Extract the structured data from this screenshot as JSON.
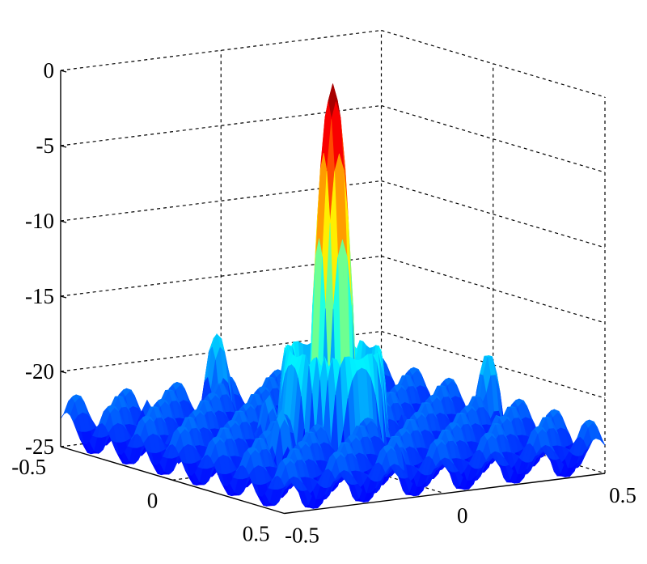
{
  "chart_data": {
    "type": "surface",
    "colormap": "jet",
    "grid": true,
    "zlim": [
      -25,
      0
    ],
    "xlim": [
      -0.5,
      0.5
    ],
    "ylim": [
      -0.5,
      0.5
    ],
    "z_ticks": [
      {
        "value": 0,
        "label": "0"
      },
      {
        "value": -5,
        "label": "-5"
      },
      {
        "value": -10,
        "label": "-10"
      },
      {
        "value": -15,
        "label": "-15"
      },
      {
        "value": -20,
        "label": "-20"
      },
      {
        "value": -25,
        "label": "-25"
      }
    ],
    "left_axis_ticks": [
      {
        "value": -0.5,
        "label": "-0.5"
      },
      {
        "value": 0,
        "label": "0"
      },
      {
        "value": 0.5,
        "label": "0.5"
      }
    ],
    "right_axis_ticks": [
      {
        "value": -0.5,
        "label": "-0.5"
      },
      {
        "value": 0,
        "label": "0"
      },
      {
        "value": 0.5,
        "label": "0.5"
      }
    ],
    "main_lobe": {
      "center": [
        0,
        0
      ],
      "peak": 0,
      "width": 0.085
    },
    "sidelobe_floor": -25,
    "sidelobes": [
      {
        "u": -0.46,
        "v": -0.04,
        "level": -18.5
      },
      {
        "u": -0.4,
        "v": -0.3,
        "level": -22.0
      },
      {
        "u": 0.05,
        "v": 0.45,
        "level": -18.8
      },
      {
        "u": 0.3,
        "v": 0.3,
        "level": -21.5
      },
      {
        "u": 0.2,
        "v": -0.3,
        "level": -20.0
      },
      {
        "u": -0.22,
        "v": 0.15,
        "level": -21.0
      },
      {
        "u": -0.06,
        "v": -0.16,
        "level": -20.5
      },
      {
        "u": 0.16,
        "v": 0.0,
        "level": -21.8
      },
      {
        "u": -0.3,
        "v": 0.42,
        "level": -22.3
      },
      {
        "u": 0.42,
        "v": -0.1,
        "level": -21.5
      },
      {
        "u": 0.0,
        "v": 0.22,
        "level": -22.5
      },
      {
        "u": -0.15,
        "v": -0.4,
        "level": -22.8
      }
    ],
    "ring_level": -17.5,
    "ring_radius": 0.12
  }
}
